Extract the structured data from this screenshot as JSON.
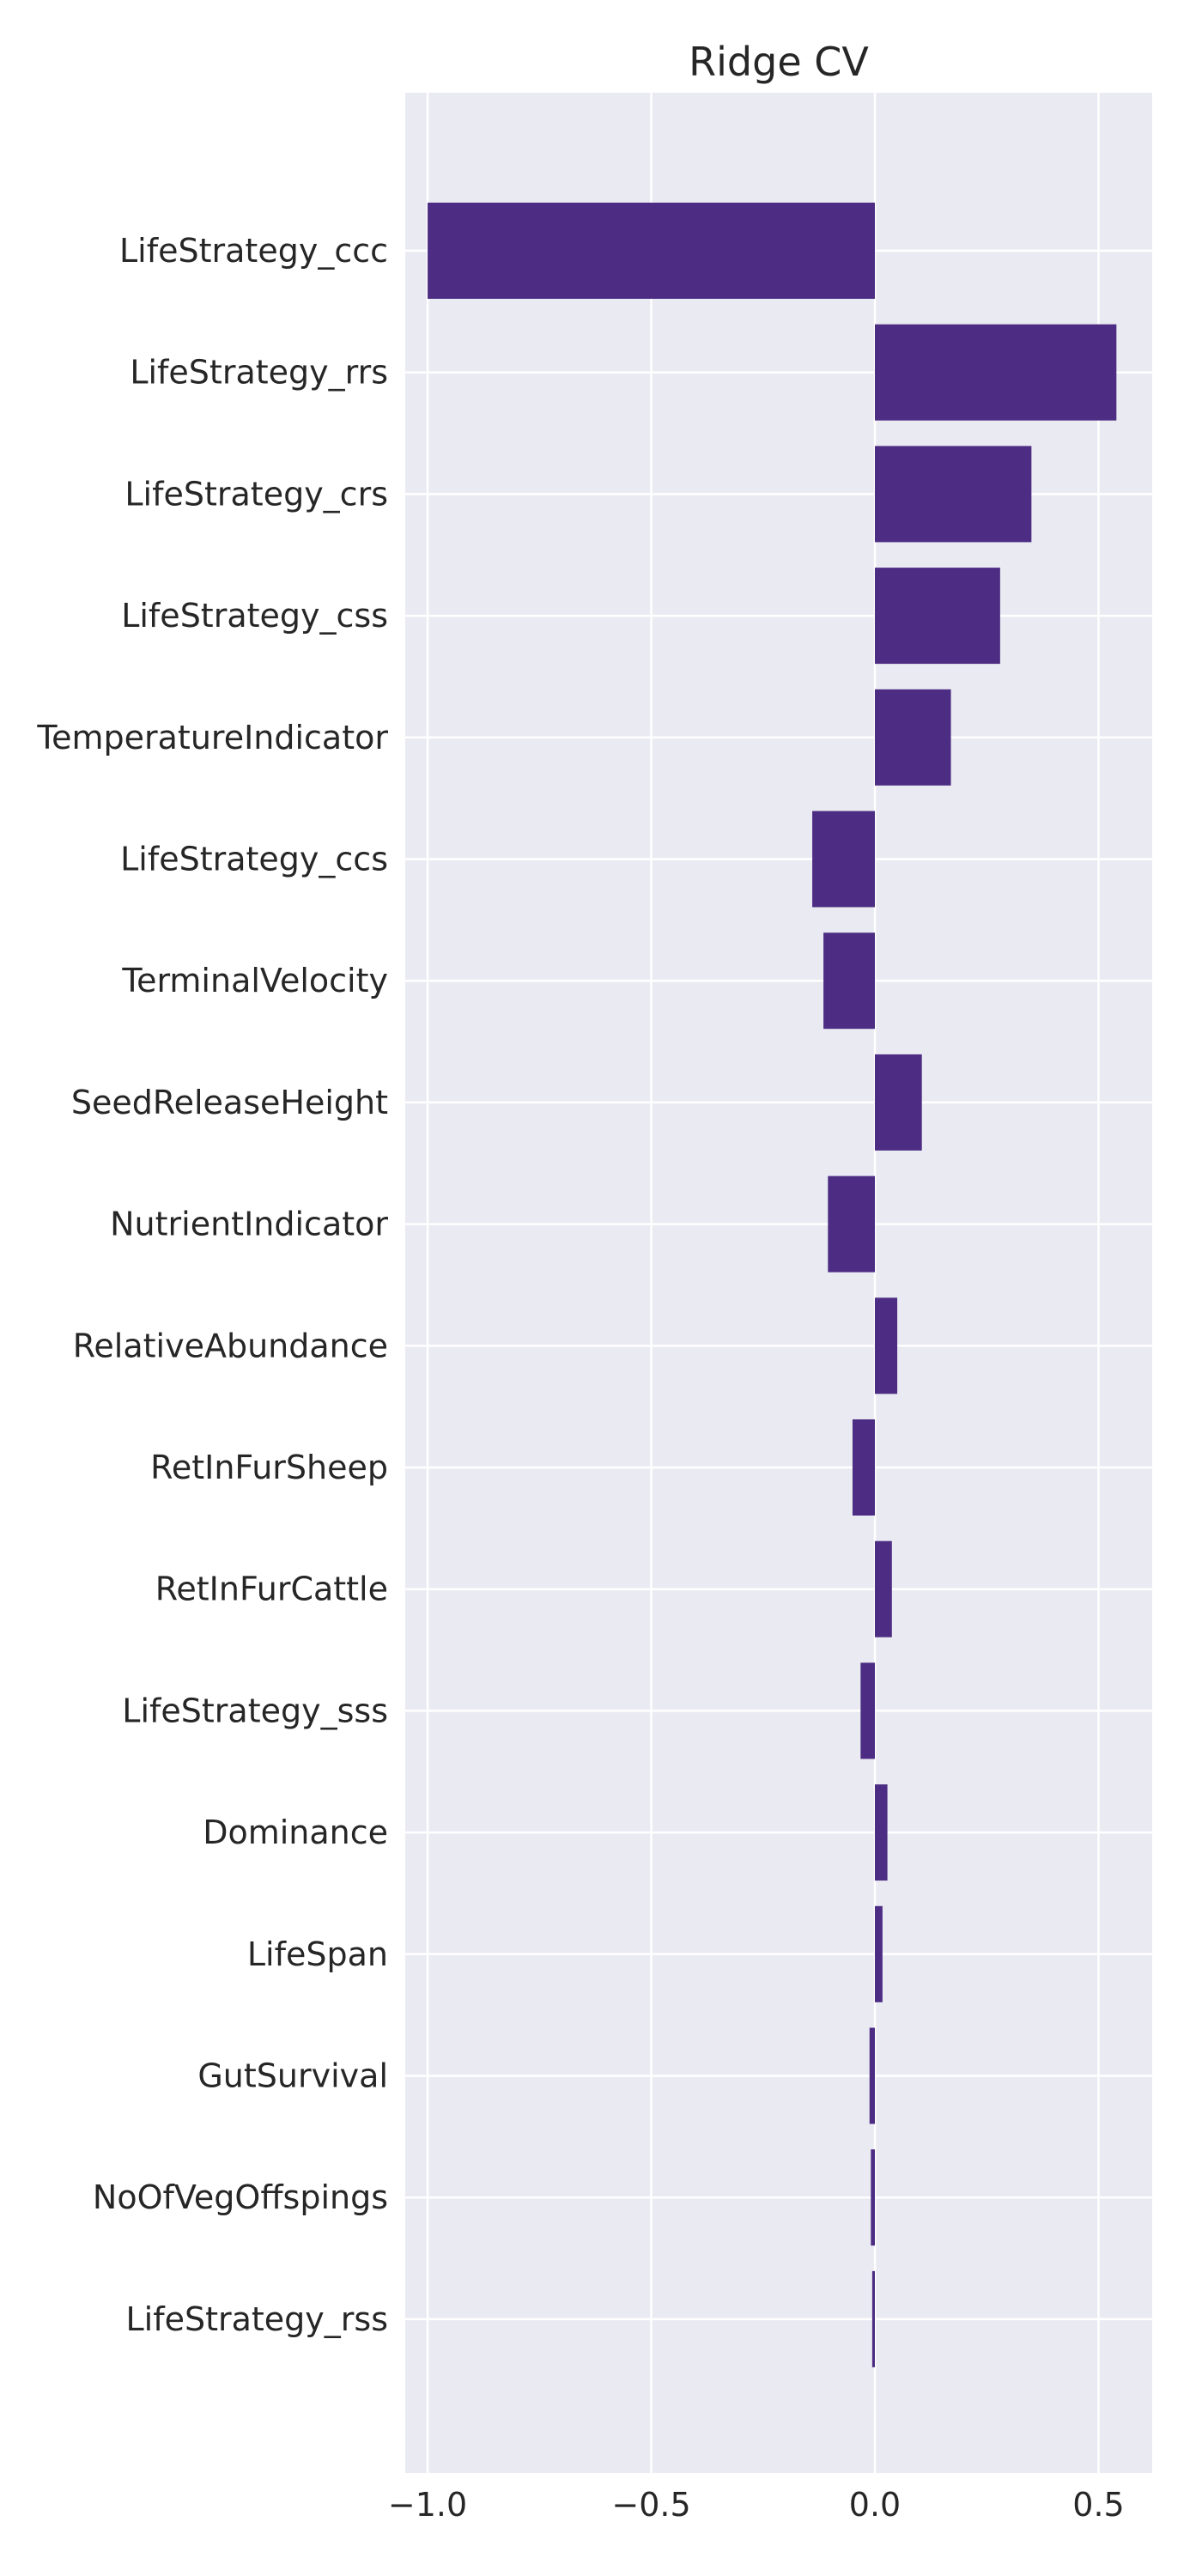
{
  "chart_data": {
    "type": "bar",
    "orientation": "horizontal",
    "title": "Ridge CV",
    "xlabel": "",
    "ylabel": "",
    "xlim": [
      -1.05,
      0.62
    ],
    "xticks": [
      -1.0,
      -0.5,
      0.0,
      0.5
    ],
    "xtick_labels": [
      "−1.0",
      "−0.5",
      "0.0",
      "0.5"
    ],
    "grid": true,
    "colors": {
      "bar": "#4c2d83",
      "plot_background": "#eaeaf2",
      "grid": "#ffffff",
      "text": "#262626"
    },
    "categories": [
      "LifeStrategy_ccc",
      "LifeStrategy_rrs",
      "LifeStrategy_crs",
      "LifeStrategy_css",
      "TemperatureIndicator",
      "LifeStrategy_ccs",
      "TerminalVelocity",
      "SeedReleaseHeight",
      "NutrientIndicator",
      "RelativeAbundance",
      "RetInFurSheep",
      "RetInFurCattle",
      "LifeStrategy_sss",
      "Dominance",
      "LifeSpan",
      "GutSurvival",
      "NoOfVegOffspings",
      "LifeStrategy_rss"
    ],
    "values": [
      -1.0,
      0.54,
      0.35,
      0.28,
      0.17,
      -0.14,
      -0.115,
      0.105,
      -0.105,
      0.05,
      -0.05,
      0.038,
      -0.032,
      0.028,
      0.017,
      -0.012,
      -0.009,
      -0.006
    ]
  }
}
